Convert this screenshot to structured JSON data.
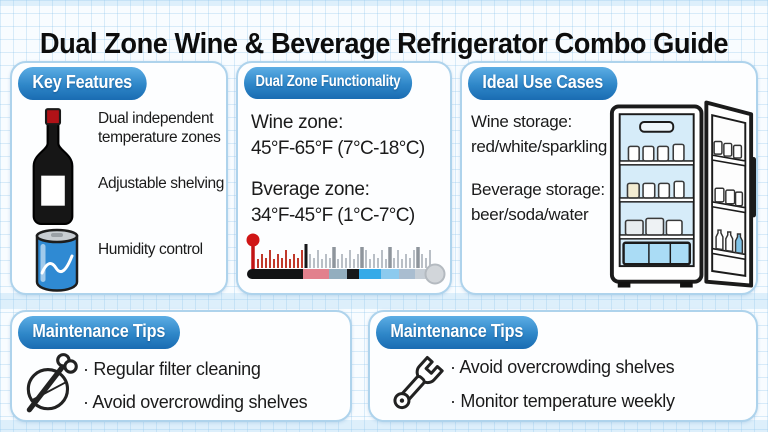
{
  "page": {
    "title": "Dual Zone Wine & Beverage Refrigerator Combo Guide"
  },
  "colors": {
    "header_pill_top": "#5cade4",
    "header_pill_bottom": "#1a6cb2",
    "panel_border": "#aed3ec",
    "grid_line": "#8cc3eb",
    "accent_red": "#c0392b",
    "can_blue": "#2f8ad3",
    "fridge_interior_blue": "#d6ecf9"
  },
  "key_features": {
    "header": "Key Features",
    "icons": [
      "wine-bottle-icon",
      "soda-can-icon"
    ],
    "items": [
      "Dual independent temperature zones",
      "Adjustable shelving",
      "Humidity control"
    ]
  },
  "dual_zone": {
    "header": "Dual Zone Functionality",
    "wine_zone_label": "Wine zone:",
    "wine_zone_range": "45°F-65°F (7°C-18°C)",
    "beverage_zone_label": "Bverage zone:",
    "beverage_zone_range": "34°F-45°F (1°C-7°C)",
    "icon": "temperature-scale-icon"
  },
  "ideal_use": {
    "header": "Ideal Use Cases",
    "wine_storage_label": "Wine storage:",
    "wine_storage_value": "red/white/sparkling",
    "beverage_storage_label": "Beverage storage:",
    "beverage_storage_value": "beer/soda/water",
    "icon": "refrigerator-icon"
  },
  "maintenance_left": {
    "header": "Maintenance Tips",
    "icon": "cleaning-tool-icon",
    "items": [
      "· Regular filter cleaning",
      "· Avoid overcrowding shelves"
    ]
  },
  "maintenance_right": {
    "header": "Maintenance Tips",
    "icon": "wrench-icon",
    "items": [
      "· Avoid overcrowding shelves",
      "· Monitor temperature weekly"
    ]
  }
}
